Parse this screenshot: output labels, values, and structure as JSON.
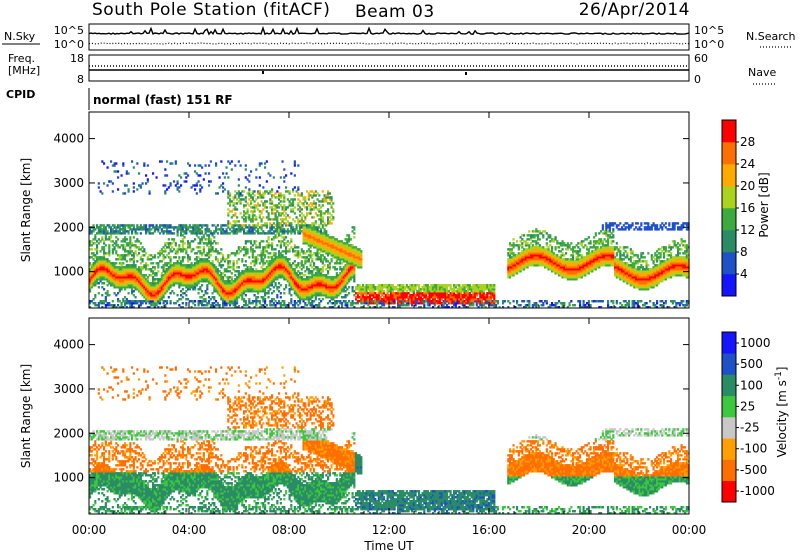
{
  "header": {
    "station": "South Pole Station (fitACF)",
    "beam": "Beam 03",
    "date": "26/Apr/2014"
  },
  "top_panels": {
    "nsky_label": "N.Sky",
    "nsky_ticks": [
      "10^5",
      "10^0"
    ],
    "nsearch_label": "N.Search",
    "nsearch_ticks": [
      "10^5",
      "10^0"
    ],
    "freq_label_1": "Freq.",
    "freq_label_2": "[MHz]",
    "freq_ticks": [
      "18",
      "8"
    ],
    "nave_label": "Nave",
    "nave_ticks": [
      "60",
      "0"
    ],
    "cpid_label": "CPID",
    "cpid_text": "normal (fast) 151 RF"
  },
  "chart_data": [
    {
      "type": "heatmap",
      "quantity": "Power",
      "xlabel": "",
      "ylabel": "Slant Range [km]",
      "colorbar_label": "Power [dB]",
      "colorbar_ticks": [
        "4",
        "8",
        "12",
        "16",
        "20",
        "24",
        "28"
      ],
      "colorbar_range": [
        0,
        32
      ],
      "xlim_hours": [
        0,
        24
      ],
      "ylim_km": [
        180,
        4600
      ],
      "yticks": [
        "1000",
        "2000",
        "3000",
        "4000"
      ],
      "ytick_values": [
        1000,
        2000,
        3000,
        4000
      ],
      "colors": [
        "#1414ff",
        "#1e50c8",
        "#2a8c64",
        "#3caa3c",
        "#aad21e",
        "#ffaa00",
        "#ff6e00",
        "#ff0000"
      ]
    },
    {
      "type": "heatmap",
      "quantity": "Velocity",
      "xlabel": "Time UT",
      "ylabel": "Slant Range [km]",
      "colorbar_label": "Velocity [m s^-1]",
      "colorbar_ticks": [
        "1000",
        "500",
        "100",
        "25",
        "-25",
        "-100",
        "-500",
        "-1000"
      ],
      "xlim_hours": [
        0,
        24
      ],
      "ylim_km": [
        180,
        4600
      ],
      "xticks": [
        "00:00",
        "04:00",
        "08:00",
        "12:00",
        "16:00",
        "20:00",
        "00:00"
      ],
      "xtick_hours": [
        0,
        4,
        8,
        12,
        16,
        20,
        24
      ],
      "yticks": [
        "1000",
        "2000",
        "3000",
        "4000"
      ],
      "ytick_values": [
        1000,
        2000,
        3000,
        4000
      ],
      "colors": [
        "#ff0000",
        "#ff6e00",
        "#ffa000",
        "#c8c8c8",
        "#3cc83c",
        "#2a8c64",
        "#1e50c8",
        "#1414ff"
      ]
    }
  ]
}
